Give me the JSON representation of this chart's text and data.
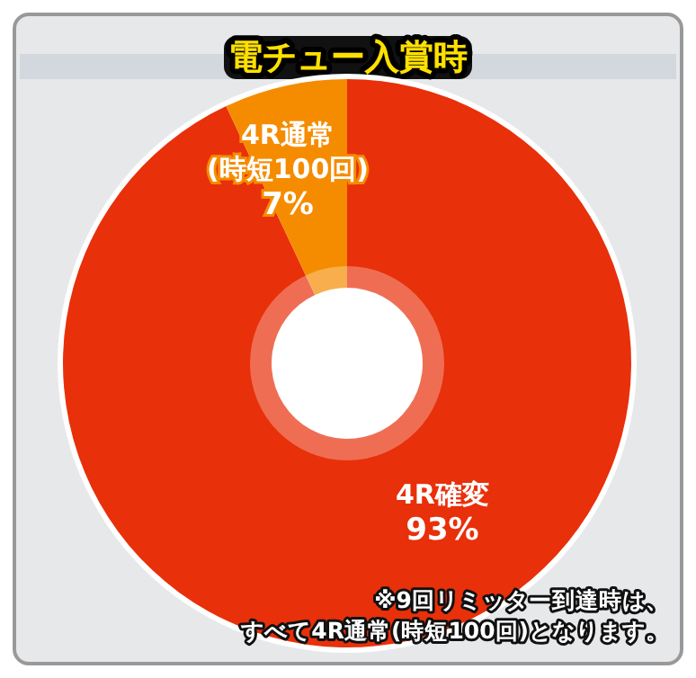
{
  "chart_data": {
    "type": "donut",
    "title": "電チュー入賞時",
    "categories": [
      "4R確変",
      "4R通常\n(時短100回)"
    ],
    "values": [
      93,
      7
    ],
    "colors": [
      "#e8300a",
      "#f58c00"
    ],
    "value_labels": [
      "93%",
      "7%"
    ],
    "annotations": [
      "※9回リミッター到達時は、",
      "すべて4R通常(時短100回)となります。"
    ]
  }
}
